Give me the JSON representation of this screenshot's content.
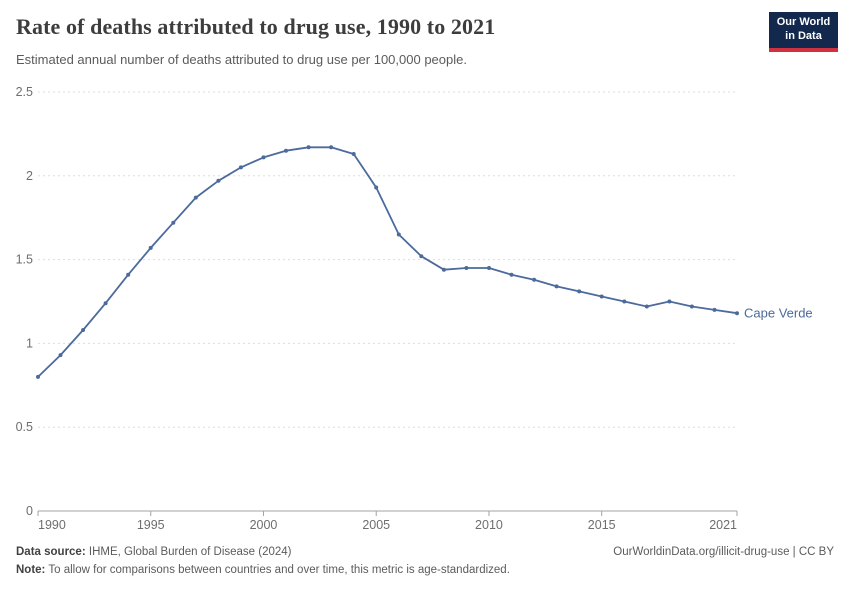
{
  "header": {
    "title": "Rate of deaths attributed to drug use, 1990 to 2021",
    "subtitle": "Estimated annual number of deaths attributed to drug use per 100,000 people.",
    "logo": {
      "line1": "Our World",
      "line2": "in Data"
    }
  },
  "chart_data": {
    "type": "line",
    "title": "Rate of deaths attributed to drug use, 1990 to 2021",
    "subtitle": "Estimated annual number of deaths attributed to drug use per 100,000 people.",
    "xlabel": "",
    "ylabel": "",
    "xlim": [
      1990,
      2021
    ],
    "ylim": [
      0,
      2.5
    ],
    "xticks": [
      1990,
      1995,
      2000,
      2005,
      2010,
      2015,
      2021
    ],
    "yticks": [
      0,
      0.5,
      1,
      1.5,
      2,
      2.5
    ],
    "grid": "horizontal-dashed",
    "legend": "end-of-line-label",
    "series": [
      {
        "name": "Cape Verde",
        "color": "#4C6A9C",
        "x": [
          1990,
          1991,
          1992,
          1993,
          1994,
          1995,
          1996,
          1997,
          1998,
          1999,
          2000,
          2001,
          2002,
          2003,
          2004,
          2005,
          2006,
          2007,
          2008,
          2009,
          2010,
          2011,
          2012,
          2013,
          2014,
          2015,
          2016,
          2017,
          2018,
          2019,
          2020,
          2021
        ],
        "values": [
          0.8,
          0.93,
          1.08,
          1.24,
          1.41,
          1.57,
          1.72,
          1.87,
          1.97,
          2.05,
          2.11,
          2.15,
          2.17,
          2.17,
          2.13,
          1.93,
          1.65,
          1.52,
          1.44,
          1.45,
          1.45,
          1.41,
          1.38,
          1.34,
          1.31,
          1.28,
          1.25,
          1.22,
          1.25,
          1.22,
          1.2,
          1.18
        ]
      }
    ]
  },
  "footer": {
    "source_label": "Data source:",
    "source_text": "IHME, Global Burden of Disease (2024)",
    "note_label": "Note:",
    "note_text": "To allow for comparisons between countries and over time, this metric is age-standardized.",
    "link": "OurWorldinData.org/illicit-drug-use | CC BY"
  },
  "colors": {
    "line": "#4C6A9C",
    "grid": "#dddddd",
    "axis": "#a3a3a3",
    "tick_text": "#6e6e6e",
    "title_text": "#3d3d3d",
    "subtitle_text": "#5b5b5b",
    "footer_text": "#5b5b5b",
    "logo_bg": "#12294d",
    "logo_red": "#d0313f"
  }
}
